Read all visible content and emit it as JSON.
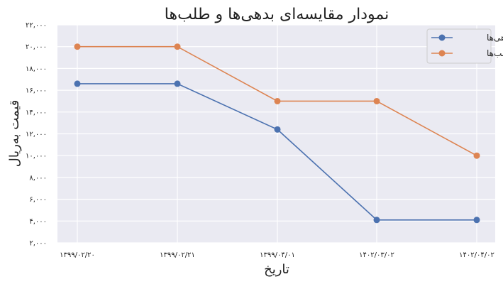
{
  "chart_data": {
    "type": "line",
    "title": "نمودار مقایسه‌ای بدهی‌ها و طلب‌ها",
    "xlabel": "تاریخ",
    "ylabel": "قیمت به‌ریال",
    "categories": [
      "۱۳۹۹/۰۲/۲۰",
      "۱۳۹۹/۰۲/۲۱",
      "۱۳۹۹/۰۴/۰۱",
      "۱۴۰۲/۰۳/۰۲",
      "۱۴۰۲/۰۴/۰۲"
    ],
    "ylim": [
      2000,
      22000
    ],
    "yticks": [
      2000,
      4000,
      6000,
      8000,
      10000,
      12000,
      14000,
      16000,
      18000,
      20000,
      22000
    ],
    "ytick_labels": [
      "۲,۰۰۰",
      "۴,۰۰۰",
      "۶,۰۰۰",
      "۸,۰۰۰",
      "۱۰,۰۰۰",
      "۱۲,۰۰۰",
      "۱۴,۰۰۰",
      "۱۶,۰۰۰",
      "۱۸,۰۰۰",
      "۲۰,۰۰۰",
      "۲۲,۰۰۰"
    ],
    "grid": true,
    "legend_position": "top-right",
    "series": [
      {
        "name": "بدهی‌ها",
        "color": "#4c72b0",
        "values": [
          16600,
          16600,
          12400,
          4100,
          4100
        ]
      },
      {
        "name": "طلب‌ها",
        "color": "#dd8452",
        "values": [
          20000,
          20000,
          15000,
          15000,
          10000
        ]
      }
    ]
  }
}
